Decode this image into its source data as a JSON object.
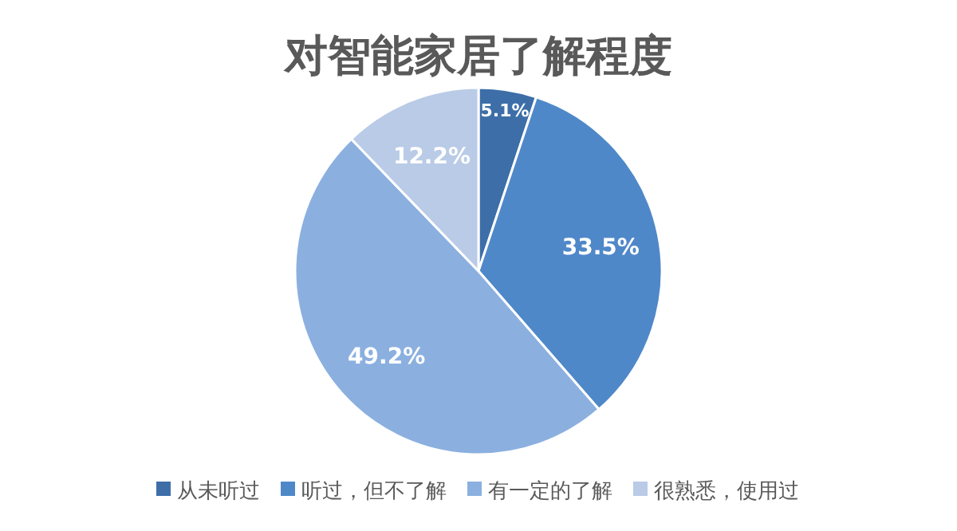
{
  "chart_data": {
    "type": "pie",
    "title": "对智能家居了解程度",
    "categories": [
      "从未听过",
      "听过，但不了解",
      "有一定的了解",
      "很熟悉，使用过"
    ],
    "values": [
      5.1,
      33.5,
      49.2,
      12.2
    ],
    "colors": [
      "#3d6ea8",
      "#4f88c9",
      "#8bb0df",
      "#b9cbe6"
    ],
    "value_labels": [
      "5.1%",
      "33.5%",
      "49.2%",
      "12.2%"
    ],
    "legend": "bottom"
  }
}
